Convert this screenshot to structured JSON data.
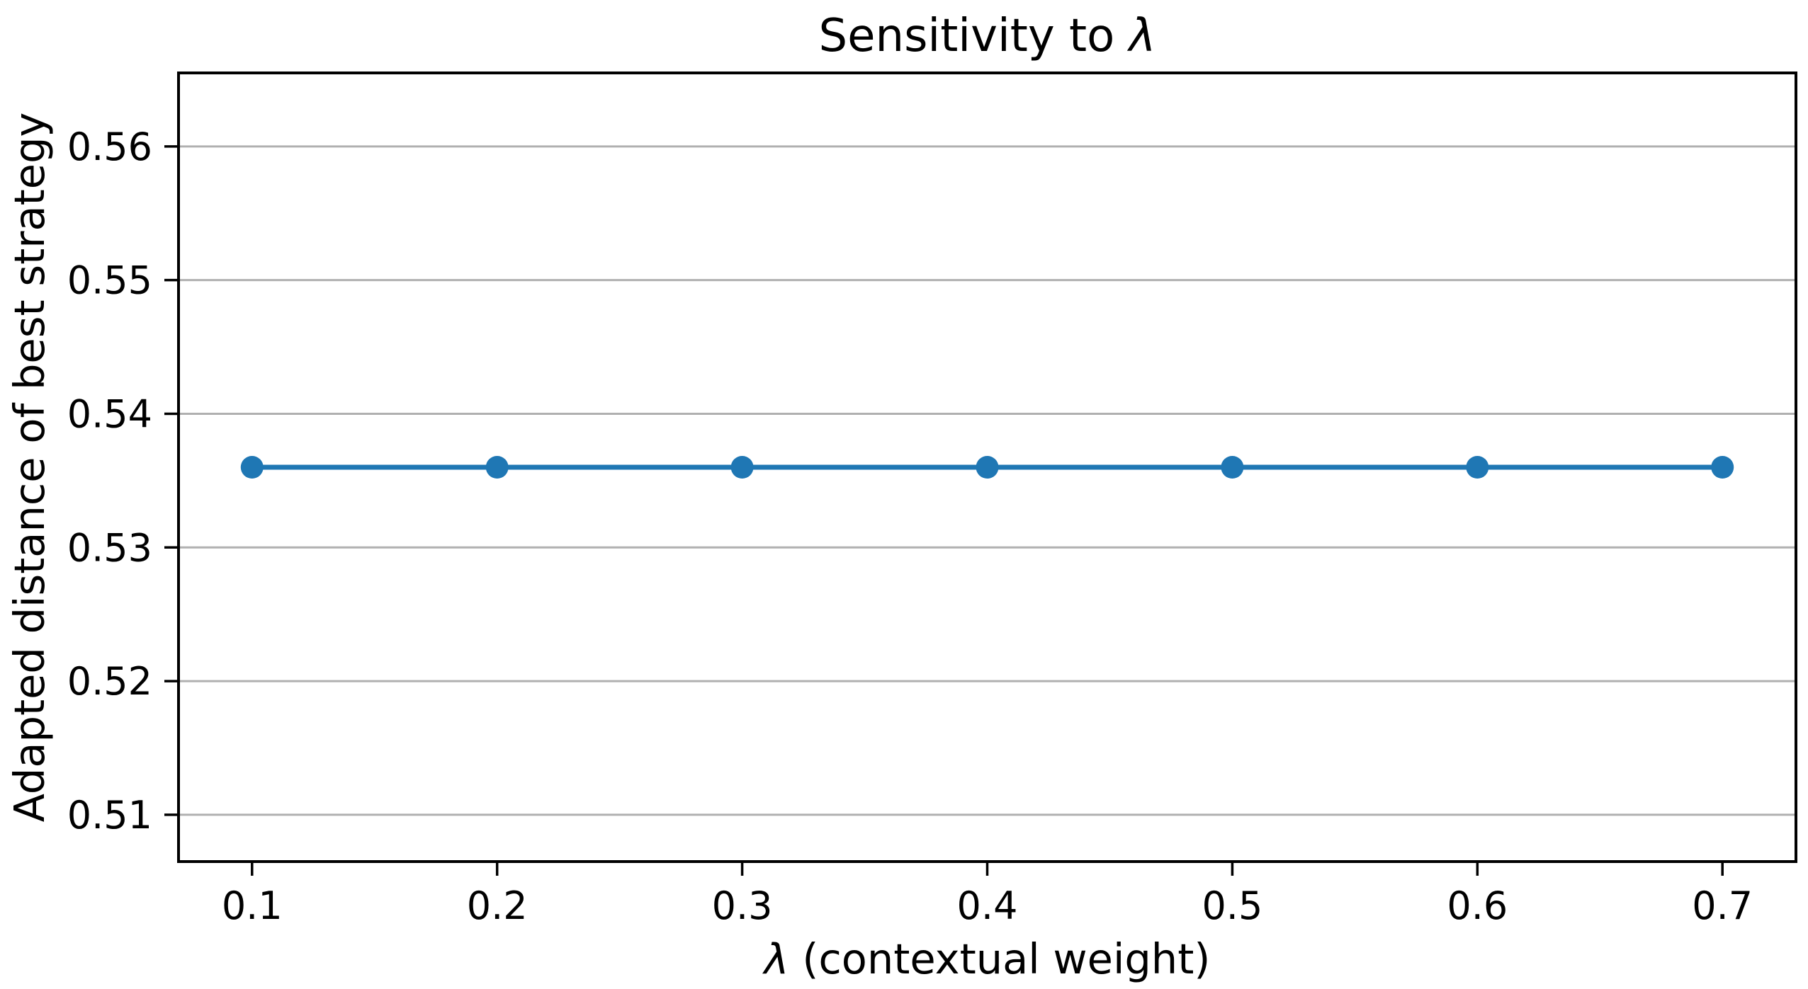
{
  "figure": {
    "background": "#ffffff"
  },
  "chart_data": {
    "type": "line",
    "title": "Sensitivity to λ",
    "xlabel": "λ (contextual weight)",
    "ylabel": "Adapted distance of best strategy",
    "x": [
      0.1,
      0.2,
      0.3,
      0.4,
      0.5,
      0.6,
      0.7
    ],
    "series": [
      {
        "name": "adapted-distance-of-best-strategy",
        "values": [
          0.536,
          0.536,
          0.536,
          0.536,
          0.536,
          0.536,
          0.536
        ],
        "color": "#1f77b4",
        "marker": "circle"
      }
    ],
    "xlim": [
      0.07,
      0.73
    ],
    "ylim": [
      0.5065,
      0.5655
    ],
    "xticks": {
      "values": [
        0.1,
        0.2,
        0.3,
        0.4,
        0.5,
        0.6,
        0.7
      ],
      "labels": [
        "0.1",
        "0.2",
        "0.3",
        "0.4",
        "0.5",
        "0.6",
        "0.7"
      ]
    },
    "yticks": {
      "values": [
        0.51,
        0.52,
        0.53,
        0.54,
        0.55,
        0.56
      ],
      "labels": [
        "0.51",
        "0.52",
        "0.53",
        "0.54",
        "0.55",
        "0.56"
      ]
    },
    "grid": {
      "horizontal": true,
      "vertical": false,
      "color": "#b0b0b0"
    },
    "axis_color": "#000000",
    "text_color": "#000000",
    "legend": "none"
  }
}
